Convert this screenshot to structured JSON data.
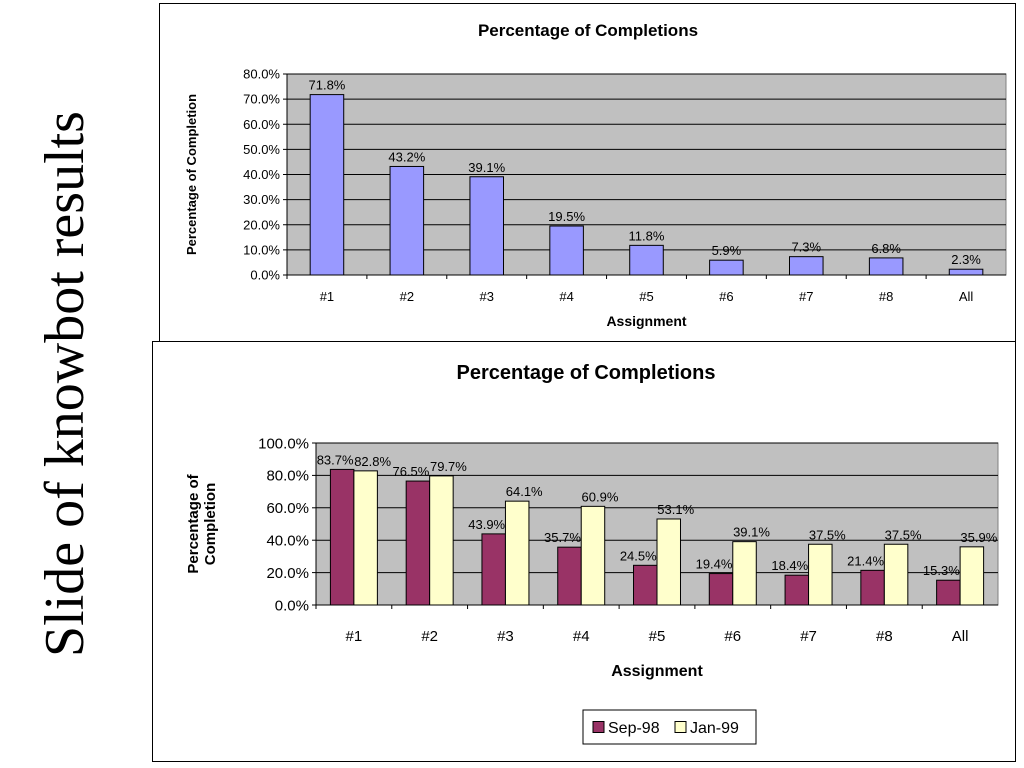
{
  "slide": {
    "title": "Slide of knowbot results"
  },
  "chart_data": [
    {
      "type": "bar",
      "title": "Percentage of Completions",
      "xlabel": "Assignment",
      "ylabel": "Percentage of Completion",
      "categories": [
        "#1",
        "#2",
        "#3",
        "#4",
        "#5",
        "#6",
        "#7",
        "#8",
        "All"
      ],
      "series": [
        {
          "values": [
            71.8,
            43.2,
            39.1,
            19.5,
            11.8,
            5.9,
            7.3,
            6.8,
            2.3
          ],
          "labels": [
            "71.8%",
            "43.2%",
            "39.1%",
            "19.5%",
            "11.8%",
            "5.9%",
            "7.3%",
            "6.8%",
            "2.3%"
          ],
          "color": "#9999ff"
        }
      ],
      "ylim": [
        0,
        80
      ],
      "yticks": [
        "0.0%",
        "10.0%",
        "20.0%",
        "30.0%",
        "40.0%",
        "50.0%",
        "60.0%",
        "70.0%",
        "80.0%"
      ],
      "grid": true,
      "plot_background": "#c0c0c0",
      "legend": "none"
    },
    {
      "type": "bar",
      "title": "Percentage of Completions",
      "xlabel": "Assignment",
      "ylabel": "Percentage of Completion",
      "categories": [
        "#1",
        "#2",
        "#3",
        "#4",
        "#5",
        "#6",
        "#7",
        "#8",
        "All"
      ],
      "series": [
        {
          "name": "Sep-98",
          "values": [
            83.7,
            76.5,
            43.9,
            35.7,
            24.5,
            19.4,
            18.4,
            21.4,
            15.3
          ],
          "labels": [
            "83.7%",
            "76.5%",
            "43.9%",
            "35.7%",
            "24.5%",
            "19.4%",
            "18.4%",
            "21.4%",
            "15.3%"
          ],
          "color": "#993366"
        },
        {
          "name": "Jan-99",
          "values": [
            82.8,
            79.7,
            64.1,
            60.9,
            53.1,
            39.1,
            37.5,
            37.5,
            35.9
          ],
          "labels": [
            "82.8%",
            "79.7%",
            "64.1%",
            "60.9%",
            "53.1%",
            "39.1%",
            "37.5%",
            "37.5%",
            "35.9%"
          ],
          "color": "#ffffcc"
        }
      ],
      "ylim": [
        0,
        100
      ],
      "yticks": [
        "0.0%",
        "20.0%",
        "40.0%",
        "60.0%",
        "80.0%",
        "100.0%"
      ],
      "grid": true,
      "plot_background": "#c0c0c0",
      "legend": "bottom"
    }
  ]
}
